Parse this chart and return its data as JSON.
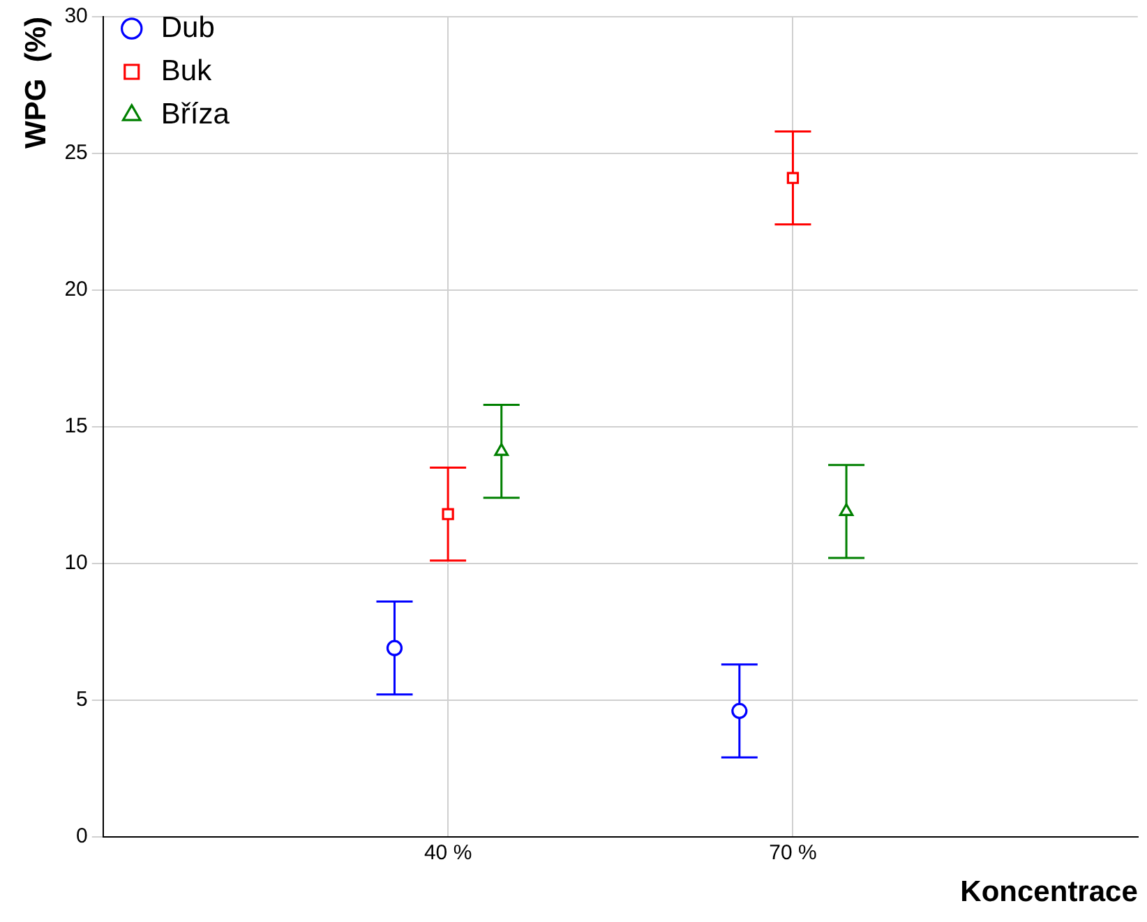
{
  "chart_data": {
    "type": "scatter",
    "xlabel": "Koncentrace",
    "ylabel": "WPG  (%)",
    "categories": [
      "40 %",
      "70 %"
    ],
    "ylim": [
      0,
      30
    ],
    "yticks": [
      0,
      5,
      10,
      15,
      20,
      25,
      30
    ],
    "grid": true,
    "legend": "top left",
    "line_style": "none",
    "series": [
      {
        "name": "Dub",
        "color": "#0000ff",
        "marker": "circle",
        "values": [
          6.9,
          4.6
        ],
        "errors": [
          1.7,
          1.7
        ]
      },
      {
        "name": "Buk",
        "color": "#ff0000",
        "marker": "square",
        "values": [
          11.8,
          24.1
        ],
        "errors": [
          1.7,
          1.7
        ]
      },
      {
        "name": "Bříza",
        "color": "#008000",
        "marker": "triangle",
        "values": [
          14.1,
          11.9
        ],
        "errors": [
          1.7,
          1.7
        ]
      }
    ]
  }
}
